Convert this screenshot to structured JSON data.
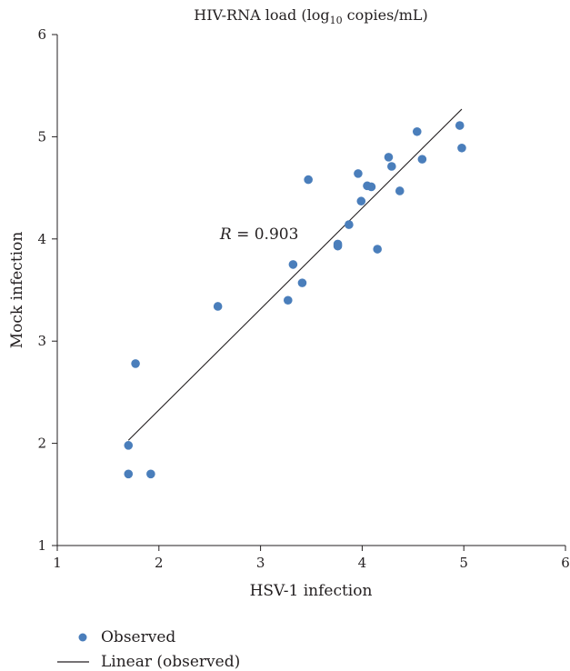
{
  "chart_data": {
    "type": "scatter",
    "title_main": "HIV-RNA load (log",
    "title_sub": "10",
    "title_tail": " copies/mL)",
    "xlabel": "HSV-1 infection",
    "ylabel": "Mock infection",
    "xlim": [
      1,
      6
    ],
    "ylim": [
      1,
      6
    ],
    "xticks": [
      1,
      2,
      3,
      4,
      5,
      6
    ],
    "yticks": [
      1,
      2,
      3,
      4,
      5,
      6
    ],
    "grid": false,
    "legend_position": "bottom-left",
    "annotation": {
      "var": "R",
      "text": " = 0.903",
      "x": 2.6,
      "y": 4.0
    },
    "series": [
      {
        "name": "Observed",
        "marker": "circle",
        "color": "#4a7ebb",
        "points": [
          [
            1.7,
            1.7
          ],
          [
            1.7,
            1.98
          ],
          [
            1.77,
            2.78
          ],
          [
            1.92,
            1.7
          ],
          [
            2.58,
            3.34
          ],
          [
            3.27,
            3.4
          ],
          [
            3.32,
            3.75
          ],
          [
            3.41,
            3.57
          ],
          [
            3.47,
            4.58
          ],
          [
            3.76,
            3.93
          ],
          [
            3.76,
            3.95
          ],
          [
            3.87,
            4.14
          ],
          [
            3.96,
            4.64
          ],
          [
            3.99,
            4.37
          ],
          [
            4.05,
            4.52
          ],
          [
            4.09,
            4.51
          ],
          [
            4.15,
            3.9
          ],
          [
            4.26,
            4.8
          ],
          [
            4.29,
            4.71
          ],
          [
            4.37,
            4.47
          ],
          [
            4.54,
            5.05
          ],
          [
            4.59,
            4.78
          ],
          [
            4.96,
            5.11
          ],
          [
            4.98,
            4.89
          ]
        ]
      },
      {
        "name": "Linear (observed)",
        "type": "line",
        "color": "#231f20",
        "points": [
          [
            1.7,
            2.03
          ],
          [
            4.98,
            5.27
          ]
        ]
      }
    ]
  }
}
